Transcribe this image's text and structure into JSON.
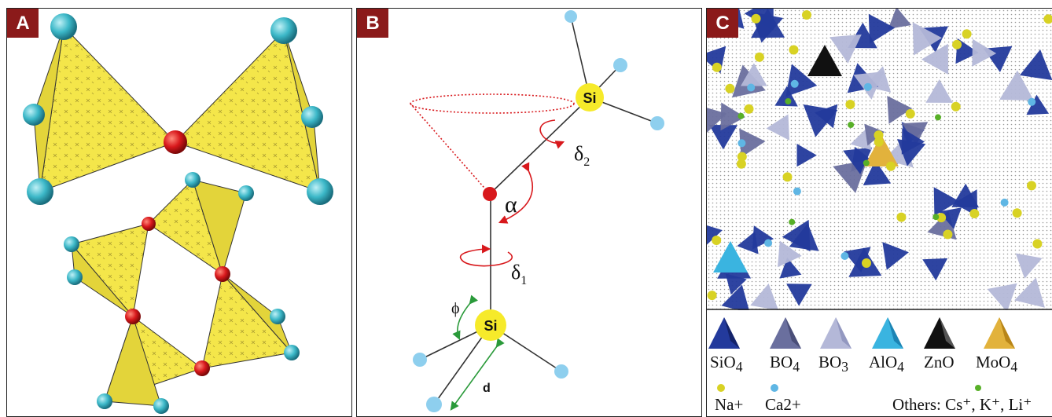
{
  "panels": {
    "a": {
      "tag": "A"
    },
    "b": {
      "tag": "B",
      "si_top": "Si",
      "si_bottom": "Si",
      "delta2": "δ",
      "delta2_sub": "2",
      "alpha": "α",
      "delta1": "δ",
      "delta1_sub": "1",
      "phi": "ϕ",
      "d": "d"
    },
    "c": {
      "tag": "C",
      "legend": {
        "sio4": "SiO",
        "sio4_sub": "4",
        "bo4": "BO",
        "bo4_sub": "4",
        "bo3": "BO",
        "bo3_sub": "3",
        "alo4": "AlO",
        "alo4_sub": "4",
        "zno": "ZnO",
        "moo4": "MoO",
        "moo4_sub": "4",
        "na": "Na+",
        "ca": "Ca2+",
        "others": "Others: Cs⁺, K⁺, Li⁺"
      }
    }
  },
  "colors": {
    "tetra_yellow": "#f4e64a",
    "oxygen_cyan": "#3cb8c8",
    "bridge_red": "#d8181c",
    "si_yellow": "#f6ea2a",
    "oxygen_blue": "#8ecfee",
    "sio4": "#233a9c",
    "bo4": "#6a6f9e",
    "bo3": "#b4b8d8",
    "alo4": "#3ab4e0",
    "zno": "#111111",
    "moo4": "#e2b23c",
    "na": "#d8d224",
    "ca": "#5fb6e4",
    "others": "#58b028",
    "tag_red": "#8b1a1a"
  }
}
